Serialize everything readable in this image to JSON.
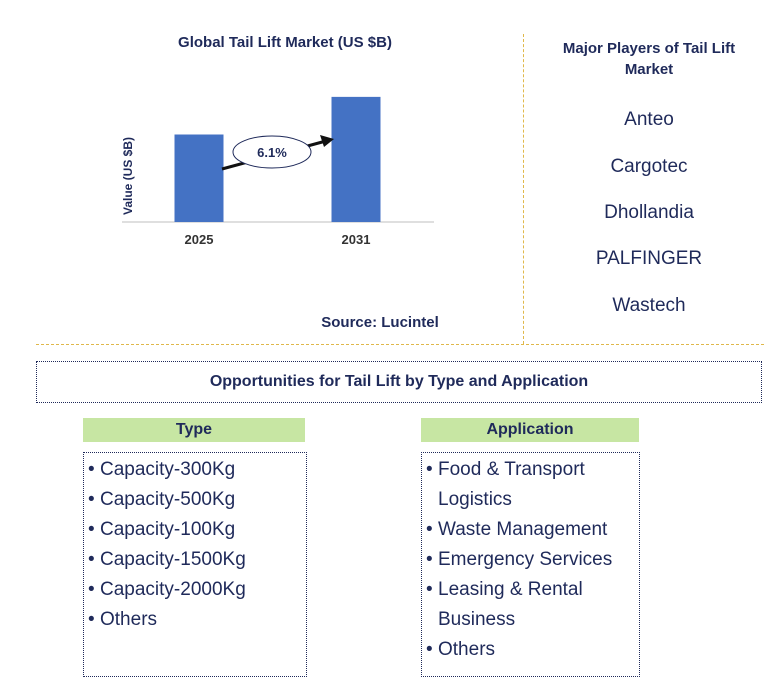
{
  "chart_data": {
    "type": "bar",
    "title": "Global Tail Lift Market (US $B)",
    "ylabel": "Value (US $B)",
    "categories": [
      "2025",
      "2031"
    ],
    "values": [
      1.0,
      1.43
    ],
    "ylim": [
      0,
      1.6
    ],
    "annotation": "6.1%",
    "color": "#4472c4",
    "source": "Source: Lucintel"
  },
  "players": {
    "title": "Major Players of Tail Lift Market",
    "items": [
      "Anteo",
      "Cargotec",
      "Dhollandia",
      "PALFINGER",
      "Wastech"
    ]
  },
  "opportunities": {
    "title": "Opportunities for Tail Lift by Type and Application"
  },
  "type": {
    "title": "Type",
    "items": [
      "Capacity-300Kg",
      "Capacity-500Kg",
      "Capacity-100Kg",
      "Capacity-1500Kg",
      "Capacity-2000Kg",
      "Others"
    ]
  },
  "application": {
    "title": "Application",
    "items": [
      "Food & Transport Logistics",
      "Waste Management",
      "Emergency Services",
      "Leasing & Rental Business",
      "Others"
    ]
  }
}
